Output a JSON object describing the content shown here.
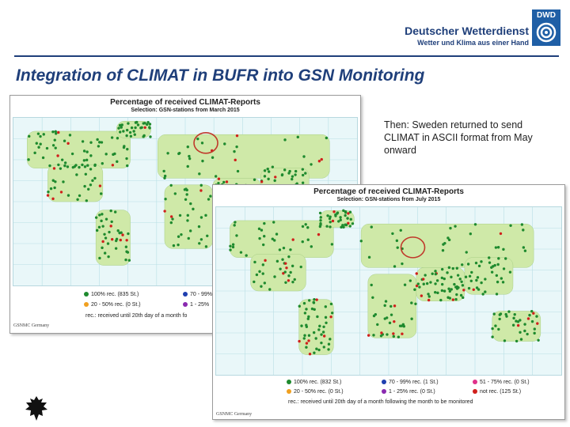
{
  "header": {
    "logo_text": "DWD",
    "org_name": "Deutscher Wetterdienst",
    "org_tagline": "Wetter und Klima aus einer Hand"
  },
  "title": "Integration of CLIMAT in BUFR into GSN Monitoring",
  "callout": "Then: Sweden returned to send CLIMAT in ASCII format from May onward",
  "maps": [
    {
      "title": "Percentage of received CLIMAT-Reports",
      "subtitle": "Selection: GSN-stations from March 2015",
      "legend": [
        {
          "label": "100% rec. (835 St.)",
          "color": "#1e8a2e"
        },
        {
          "label": "70 - 99%",
          "color": "#1f3fb0"
        },
        {
          "label": "20 - 50% rec. (0 St.)",
          "color": "#f0a020"
        },
        {
          "label": "1 - 25%",
          "color": "#8a2ab0"
        }
      ],
      "note": "rec.: received until 20th day of a month fo",
      "footer": "GSNMC Germany"
    },
    {
      "title": "Percentage of received CLIMAT-Reports",
      "subtitle": "Selection: GSN-stations from July 2015",
      "legend": [
        {
          "label": "100% rec. (832 St.)",
          "color": "#1e8a2e"
        },
        {
          "label": "70 - 99% rec. (1 St.)",
          "color": "#1f3fb0"
        },
        {
          "label": "51 - 75% rec. (0 St.)",
          "color": "#e0308a"
        },
        {
          "label": "20 - 50% rec. (0 St.)",
          "color": "#f0a020"
        },
        {
          "label": "1 - 25% rec. (0 St.)",
          "color": "#8a2ab0"
        },
        {
          "label": "not rec. (125 St.)",
          "color": "#d0201c"
        }
      ],
      "note": "rec.: received until 20th day of a month following the month to be monitored",
      "footer": "GSNMC Germany"
    }
  ],
  "colors": {
    "brand_blue": "#1f3f7a",
    "dot_received": "#1e8a2e",
    "dot_missing": "#d0201c",
    "highlight_circle": "#c0392b"
  }
}
